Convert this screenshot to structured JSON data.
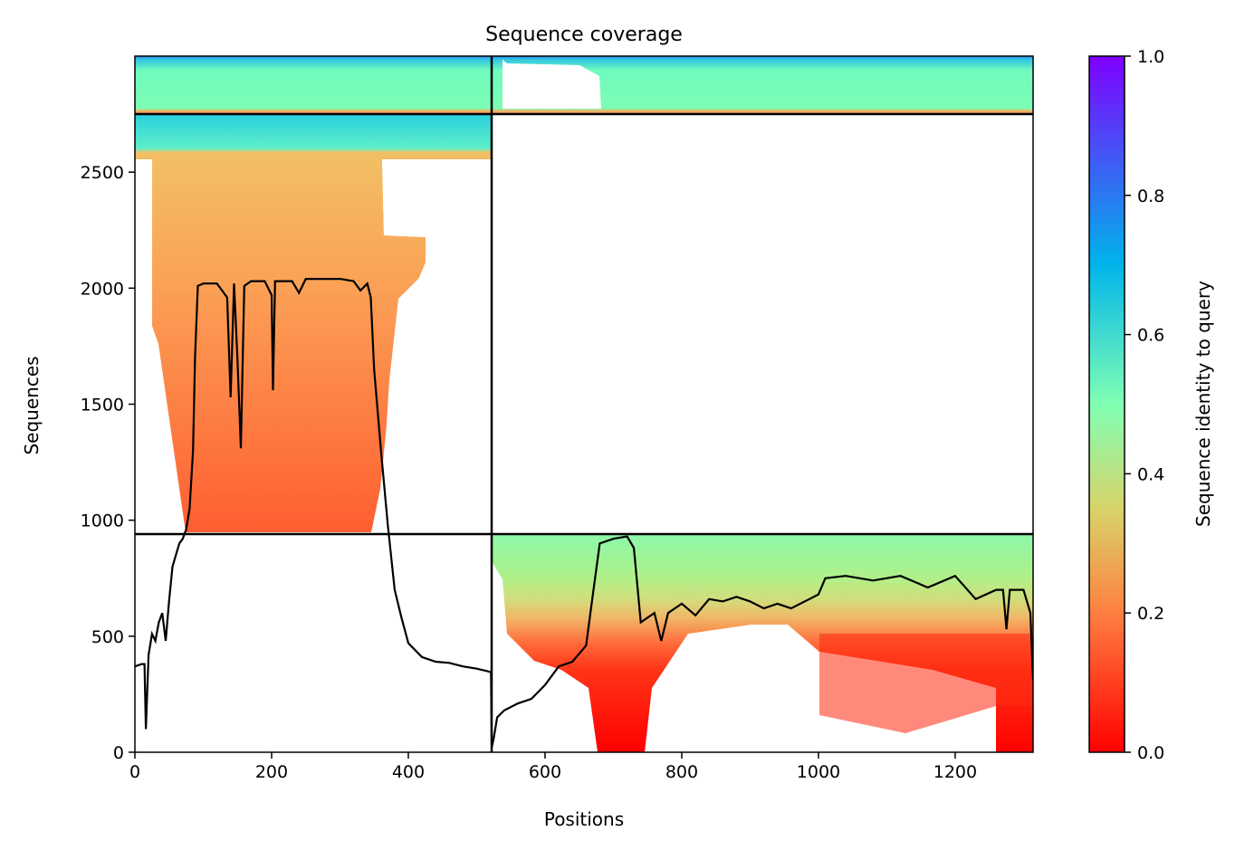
{
  "chart_data": {
    "type": "heatmap",
    "title": "Sequence coverage",
    "xlabel": "Positions",
    "ylabel": "Sequences",
    "xlim": [
      0,
      1314
    ],
    "ylim": [
      0,
      3000
    ],
    "x_ticks": [
      "0",
      "200",
      "400",
      "600",
      "800",
      "1000",
      "1200"
    ],
    "x_tick_values": [
      0,
      200,
      400,
      600,
      800,
      1000,
      1200
    ],
    "y_ticks": [
      "0",
      "500",
      "1000",
      "1500",
      "2000",
      "2500"
    ],
    "y_tick_values": [
      0,
      500,
      1000,
      1500,
      2000,
      2500
    ],
    "colorbar": {
      "label": "Sequence identity to query",
      "range": [
        0,
        1
      ],
      "ticks": [
        "0.0",
        "0.2",
        "0.4",
        "0.6",
        "0.8",
        "1.0"
      ],
      "tick_values": [
        0,
        0.2,
        0.4,
        0.6,
        0.8,
        1.0
      ],
      "colormap": "rainbow_r"
    },
    "chain_boundary_x": 522,
    "row_boundaries_y": [
      943,
      2755
    ],
    "blocks": [
      {
        "x0": 0,
        "x1": 522,
        "y0": 2755,
        "y1": 3000,
        "identity_top": 0.75,
        "identity_bottom": 0.5
      },
      {
        "x0": 522,
        "x1": 1314,
        "y0": 2755,
        "y1": 3000,
        "identity_top": 0.75,
        "identity_bottom": 0.5
      },
      {
        "x0": 0,
        "x1": 522,
        "y0": 943,
        "y1": 2755,
        "identity_top": 0.6,
        "identity_bottom": 0.17
      },
      {
        "x0": 522,
        "x1": 1314,
        "y0": 0,
        "y1": 943,
        "identity_top": 0.42,
        "identity_bottom": 0.0
      }
    ],
    "coverage": {
      "x": [
        0,
        10,
        14,
        16,
        20,
        25,
        30,
        35,
        40,
        45,
        50,
        55,
        60,
        65,
        70,
        75,
        80,
        85,
        88,
        92,
        100,
        120,
        135,
        140,
        145,
        150,
        155,
        160,
        170,
        190,
        200,
        202,
        205,
        210,
        230,
        240,
        250,
        270,
        300,
        320,
        330,
        340,
        345,
        350,
        360,
        370,
        380,
        390,
        400,
        410,
        420,
        440,
        460,
        480,
        500,
        515,
        521,
        522,
        525,
        530,
        540,
        560,
        580,
        600,
        620,
        640,
        660,
        670,
        680,
        700,
        720,
        730,
        740,
        750,
        760,
        770,
        780,
        800,
        820,
        840,
        860,
        880,
        900,
        920,
        940,
        960,
        980,
        1000,
        1010,
        1040,
        1080,
        1120,
        1160,
        1200,
        1230,
        1260,
        1270,
        1275,
        1280,
        1300,
        1310,
        1314
      ],
      "y": [
        370,
        380,
        380,
        100,
        420,
        510,
        480,
        560,
        600,
        480,
        650,
        800,
        850,
        900,
        920,
        960,
        1050,
        1300,
        1700,
        2010,
        2020,
        2020,
        1960,
        1530,
        2020,
        1700,
        1310,
        2010,
        2030,
        2030,
        1970,
        1560,
        2030,
        2030,
        2030,
        1980,
        2040,
        2040,
        2040,
        2030,
        1990,
        2020,
        1960,
        1650,
        1300,
        980,
        700,
        580,
        470,
        440,
        410,
        390,
        385,
        370,
        360,
        350,
        345,
        20,
        60,
        150,
        180,
        210,
        230,
        290,
        370,
        390,
        460,
        680,
        900,
        920,
        930,
        880,
        560,
        580,
        600,
        480,
        600,
        640,
        590,
        660,
        650,
        670,
        650,
        620,
        640,
        620,
        650,
        680,
        750,
        760,
        740,
        760,
        710,
        760,
        660,
        700,
        700,
        530,
        700,
        700,
        600,
        310
      ]
    }
  }
}
